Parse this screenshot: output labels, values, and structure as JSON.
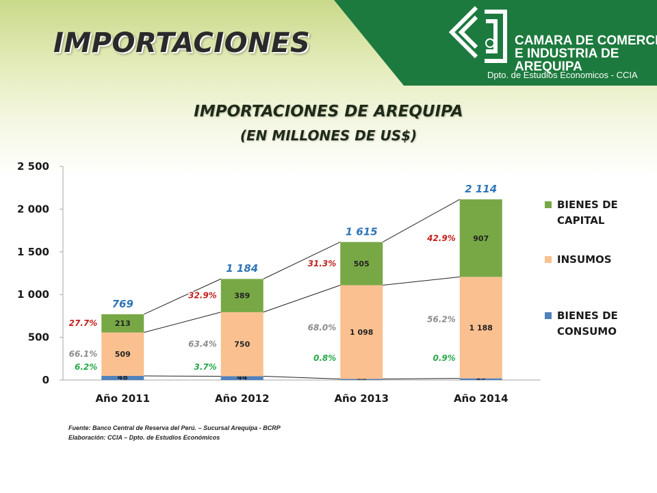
{
  "header": {
    "slide_title": "IMPORTACIONES",
    "org_lines": [
      "CAMARA DE COMERCIO",
      "E INDUSTRIA DE",
      "AREQUIPA"
    ],
    "org_dept": "Dpto. de Estudios Economicos - CCIA",
    "logo_icon": "ccia-logo-icon",
    "brand_color": "#1d7a3e"
  },
  "chart_data": {
    "type": "bar",
    "stacked": true,
    "title": "IMPORTACIONES DE AREQUIPA",
    "subtitle": "(EN MILLONES DE US$)",
    "categories": [
      "Año 2011",
      "Año 2012",
      "Año 2013",
      "Año 2014"
    ],
    "ylim": [
      0,
      2500
    ],
    "yticks": [
      0,
      500,
      1000,
      1500,
      2000,
      2500
    ],
    "ytick_labels": [
      "0",
      "500",
      "1 000",
      "1 500",
      "2 000",
      "2 500"
    ],
    "grid": false,
    "legend_position": "right",
    "series": [
      {
        "name": "BIENES DE CONSUMO",
        "color": "#4f81bd",
        "values": [
          48,
          44,
          12,
          19
        ],
        "value_labels": [
          "48",
          "44",
          "12",
          "19"
        ],
        "share_labels": [
          "6.2%",
          "3.7%",
          "0.8%",
          "0.9%"
        ],
        "share_color": "#27a84a"
      },
      {
        "name": "INSUMOS",
        "color": "#fac090",
        "values": [
          509,
          750,
          1098,
          1188
        ],
        "value_labels": [
          "509",
          "750",
          "1 098",
          "1 188"
        ],
        "share_labels": [
          "66.1%",
          "63.4%",
          "68.0%",
          "56.2%"
        ],
        "share_color": "#8c8c8c"
      },
      {
        "name": "BIENES DE CAPITAL",
        "color": "#77a845",
        "values": [
          213,
          389,
          505,
          907
        ],
        "value_labels": [
          "213",
          "389",
          "505",
          "907"
        ],
        "share_labels": [
          "27.7%",
          "32.9%",
          "31.3%",
          "42.9%"
        ],
        "share_color": "#c0221e"
      }
    ],
    "totals": [
      769,
      1184,
      1615,
      2114
    ],
    "total_labels": [
      "769",
      "1 184",
      "1 615",
      "2 114"
    ],
    "total_color": "#2e75b6",
    "legend_entries": [
      {
        "lines": [
          "BIENES DE",
          "CAPITAL"
        ],
        "color": "#77a845"
      },
      {
        "lines": [
          "INSUMOS"
        ],
        "color": "#fac090"
      },
      {
        "lines": [
          "BIENES DE",
          "CONSUMO"
        ],
        "color": "#4f81bd"
      }
    ]
  },
  "footer": {
    "source": "Fuente: Banco Central de Reserva del Perú. – Sucursal Arequipa - BCRP",
    "elaboration": "Elaboración: CCIA – Dpto. de Estudios Económicos"
  }
}
